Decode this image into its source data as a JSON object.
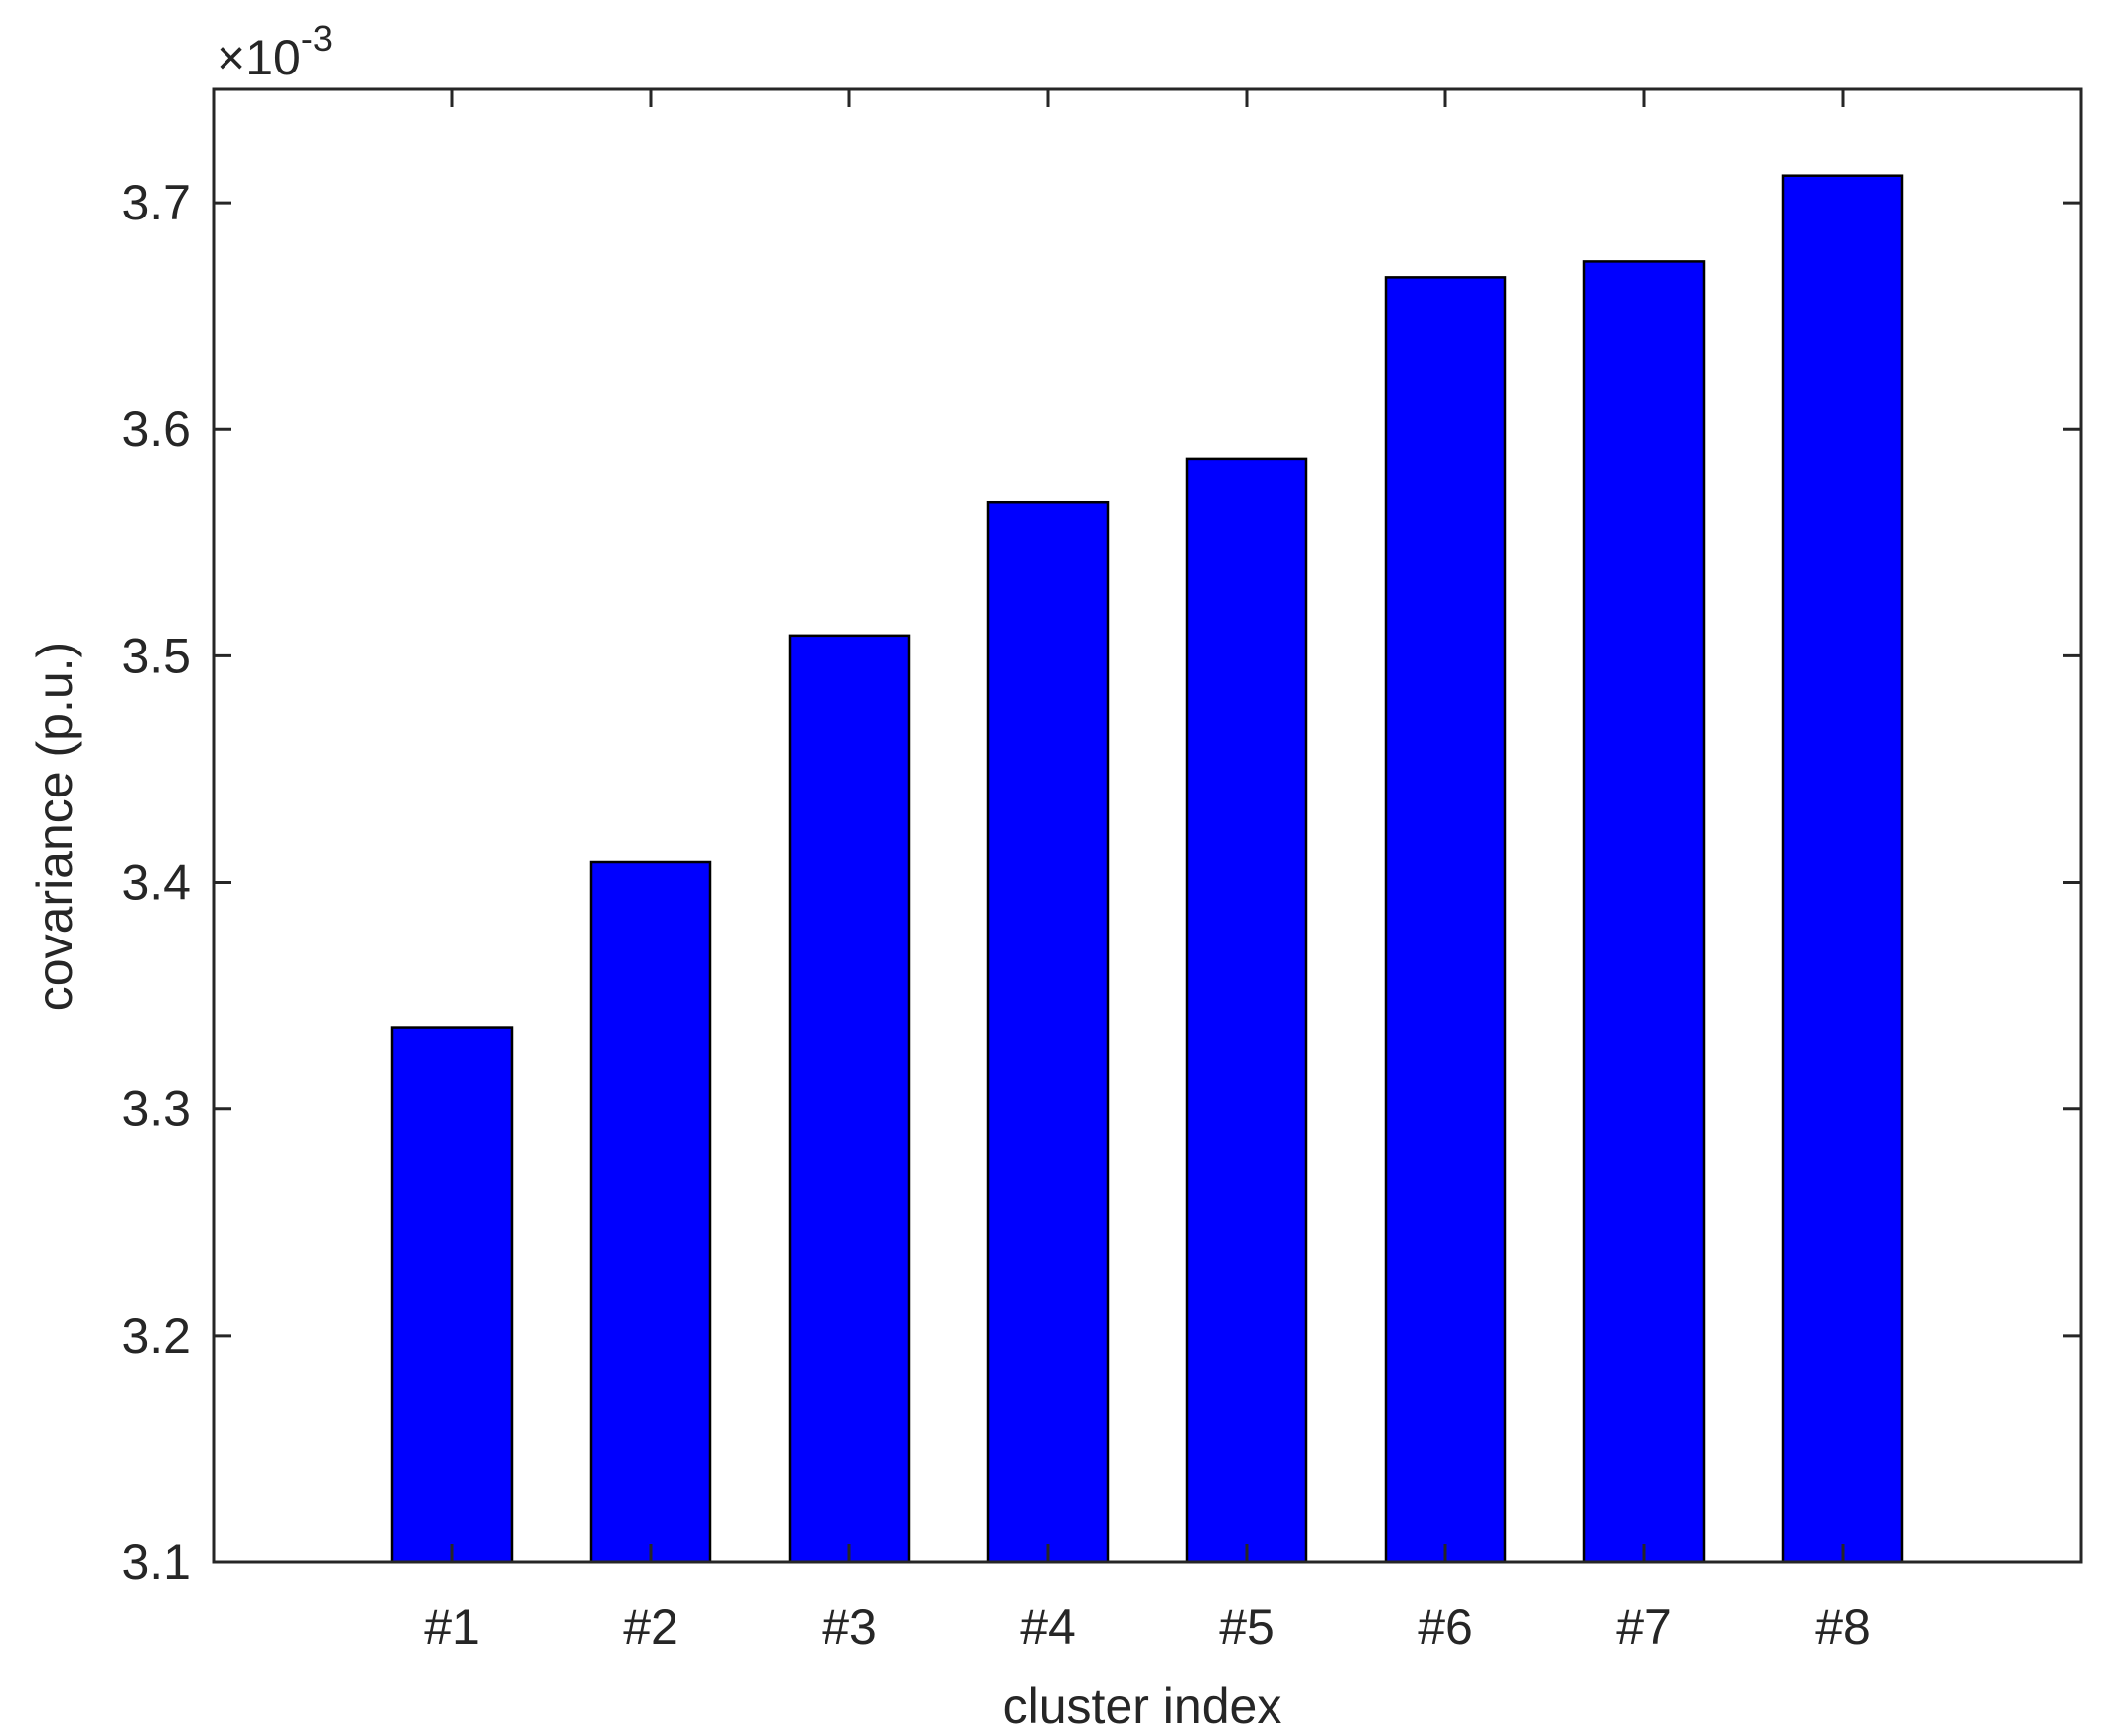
{
  "chart_data": {
    "type": "bar",
    "categories": [
      "#1",
      "#2",
      "#3",
      "#4",
      "#5",
      "#6",
      "#7",
      "#8"
    ],
    "values": [
      3.336,
      3.409,
      3.509,
      3.568,
      3.587,
      3.667,
      3.674,
      3.712
    ],
    "xlabel": "cluster index",
    "ylabel": "covariance (p.u.)",
    "ylim": [
      3.1,
      3.75
    ],
    "yticks": [
      3.1,
      3.2,
      3.3,
      3.4,
      3.5,
      3.6,
      3.7
    ],
    "ytick_labels": [
      "3.1",
      "3.2",
      "3.3",
      "3.4",
      "3.5",
      "3.6",
      "3.7"
    ],
    "exponent_base": "×10",
    "exponent_power": "-3",
    "bar_color": "#0000ff",
    "grid": false
  }
}
